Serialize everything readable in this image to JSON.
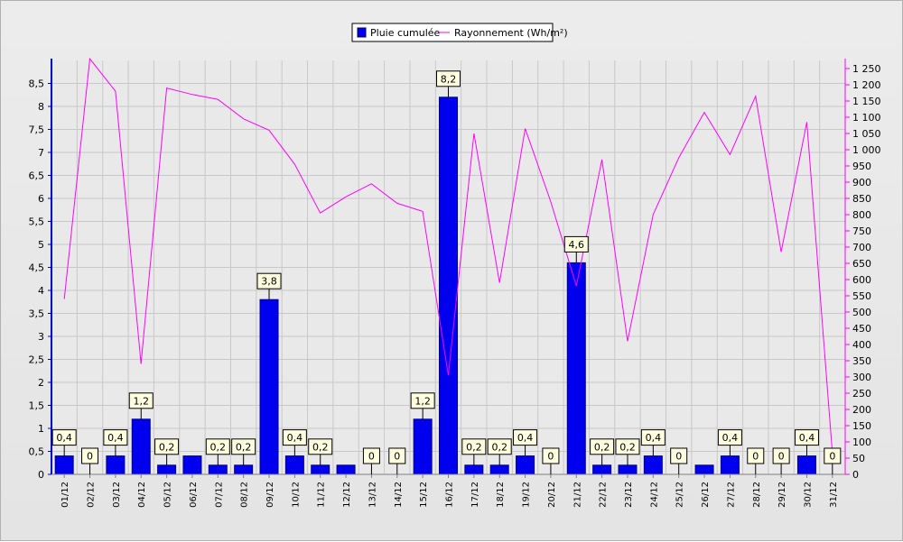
{
  "colors": {
    "bar": "#0000ee",
    "line": "#ff00ff",
    "left_axis": "#0000cc",
    "right_axis": "#ff00ff",
    "label_bg": "#ffffe0"
  },
  "chart_data": {
    "type": "bar",
    "title": "",
    "xlabel": "",
    "ylabel": "",
    "grid": true,
    "legend": "top-center",
    "categories": [
      "01/12",
      "02/12",
      "03/12",
      "04/12",
      "05/12",
      "06/12",
      "07/12",
      "08/12",
      "09/12",
      "10/12",
      "11/12",
      "12/12",
      "13/12",
      "14/12",
      "15/12",
      "16/12",
      "17/12",
      "18/12",
      "19/12",
      "20/12",
      "21/12",
      "22/12",
      "23/12",
      "24/12",
      "25/12",
      "26/12",
      "27/12",
      "28/12",
      "29/12",
      "30/12",
      "31/12"
    ],
    "y_left": {
      "ylim": [
        0,
        9
      ],
      "ticks": [
        "0",
        "0,5",
        "1",
        "1,5",
        "2",
        "2,5",
        "3",
        "3,5",
        "4",
        "4,5",
        "5",
        "5,5",
        "6",
        "6,5",
        "7",
        "7,5",
        "8",
        "8,5"
      ]
    },
    "y_right": {
      "ylim": [
        0,
        1275
      ],
      "ticks": [
        "0",
        "50",
        "100",
        "150",
        "200",
        "250",
        "300",
        "350",
        "400",
        "450",
        "500",
        "550",
        "600",
        "650",
        "700",
        "750",
        "800",
        "850",
        "900",
        "950",
        "1 000",
        "1 050",
        "1 100",
        "1 150",
        "1 200",
        "1 250"
      ]
    },
    "series": [
      {
        "name": "Pluie cumulée",
        "type": "bar",
        "axis": "left",
        "values": [
          0.4,
          0,
          0.4,
          1.2,
          0.2,
          0.4,
          0.2,
          0.2,
          3.8,
          0.4,
          0.2,
          0.2,
          0,
          0,
          1.2,
          8.2,
          0.2,
          0.2,
          0.4,
          0,
          4.6,
          0.2,
          0.2,
          0.4,
          0,
          0.2,
          0.4,
          0,
          0,
          0.4,
          0
        ]
      },
      {
        "name": "Rayonnement (Wh/m²)",
        "type": "line",
        "axis": "right",
        "values": [
          540,
          1280,
          1180,
          340,
          1190,
          1170,
          1155,
          1095,
          1060,
          955,
          805,
          855,
          895,
          835,
          810,
          305,
          1050,
          590,
          1065,
          840,
          580,
          970,
          410,
          800,
          975,
          1115,
          985,
          1165,
          685,
          1085,
          65
        ]
      }
    ],
    "data_labels": [
      "0,4",
      "0",
      "0,4",
      "1,2",
      "0,2",
      null,
      "0,2",
      "0,2",
      "3,8",
      "0,4",
      "0,2",
      null,
      "0",
      "0",
      "1,2",
      "8,2",
      "0,2",
      "0,2",
      "0,4",
      "0",
      "4,6",
      "0,2",
      "0,2",
      "0,4",
      "0",
      null,
      "0,4",
      "0",
      "0",
      "0,4",
      "0"
    ]
  }
}
